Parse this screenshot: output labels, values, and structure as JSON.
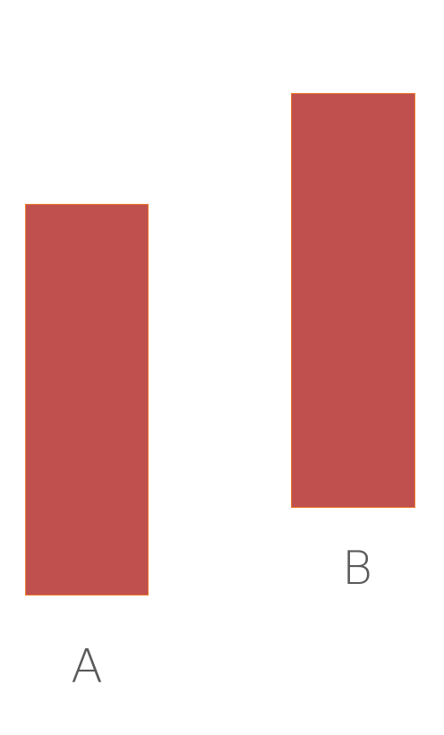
{
  "colors": {
    "block_fill": "#C0504D",
    "block_border": "#ED7D31",
    "label_color": "#595959",
    "background": "#FFFFFF"
  },
  "blocks": [
    {
      "label": "A"
    },
    {
      "label": "B"
    }
  ]
}
